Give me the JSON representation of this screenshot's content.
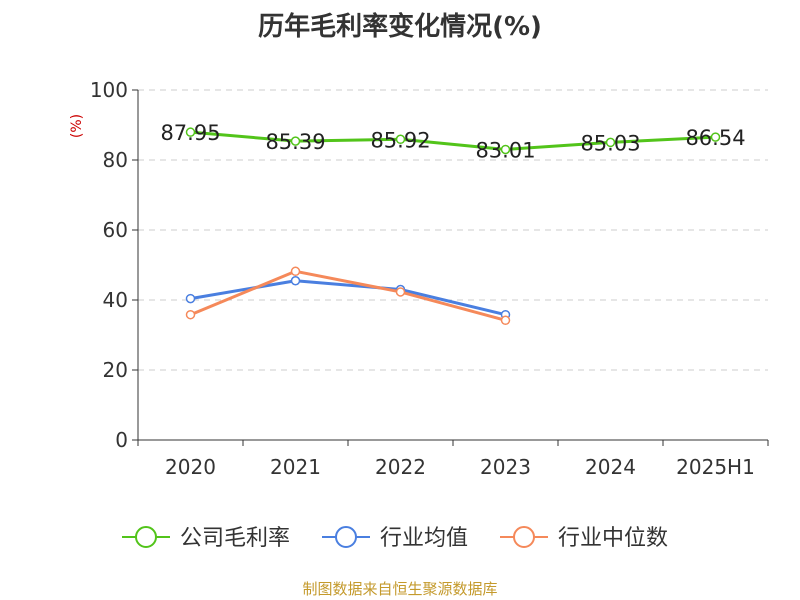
{
  "title": "历年毛利率变化情况(%)",
  "source": "制图数据来自恒生聚源数据库",
  "chart_data": {
    "type": "line",
    "title": "历年毛利率变化情况(%)",
    "ylabel": "(%)",
    "categories": [
      "2020",
      "2021",
      "2022",
      "2023",
      "2024",
      "2025H1"
    ],
    "ylim": [
      0,
      100
    ],
    "yticks": [
      0,
      20,
      40,
      60,
      80,
      100
    ],
    "grid": true,
    "legend_position": "bottom",
    "series": [
      {
        "name": "公司毛利率",
        "color": "#52c41a",
        "values": [
          87.95,
          85.39,
          85.92,
          83.01,
          85.03,
          86.54
        ],
        "labels": [
          "87.95",
          "85.39",
          "85.92",
          "83.01",
          "85.03",
          "86.54"
        ]
      },
      {
        "name": "行业均值",
        "color": "#4a7fe0",
        "values": [
          40.4,
          45.5,
          43.0,
          35.8,
          null,
          null
        ]
      },
      {
        "name": "行业中位数",
        "color": "#f5895a",
        "values": [
          35.8,
          48.2,
          42.3,
          34.2,
          null,
          null
        ]
      }
    ]
  }
}
